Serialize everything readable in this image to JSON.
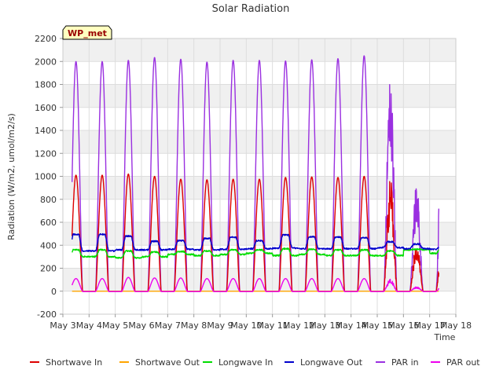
{
  "chart_data": {
    "type": "line",
    "title": "Solar Radiation",
    "xlabel": "Time",
    "ylabel": "Radiation (W/m2, umol/m2/s)",
    "ylim": [
      -200,
      2200
    ],
    "xlim": [
      3,
      18
    ],
    "yticks": [
      -200,
      0,
      200,
      400,
      600,
      800,
      1000,
      1200,
      1400,
      1600,
      1800,
      2000,
      2200
    ],
    "xticks": [
      3,
      4,
      5,
      6,
      7,
      8,
      9,
      10,
      11,
      12,
      13,
      14,
      15,
      16,
      17,
      18
    ],
    "xtick_labels": [
      "May 3",
      "May 4",
      "May 5",
      "May 6",
      "May 7",
      "May 8",
      "May 9",
      "May 10",
      "May 11",
      "May 12",
      "May 13",
      "May 14",
      "May 15",
      "May 16",
      "May 17",
      "May 18"
    ],
    "grid": true,
    "legend_position": "bottom",
    "annotation": "WP_met",
    "x_data_start": 3.35,
    "x_data_end": 17.35,
    "series": [
      {
        "name": "Shortwave In",
        "color": "#dd0000",
        "daily_peak": [
          1010,
          1020,
          1000,
          975,
          970,
          975,
          975,
          990,
          995,
          990,
          1000,
          980,
          420,
          500
        ],
        "baseline": 0
      },
      {
        "name": "Shortwave Out",
        "color": "#ffa500",
        "daily_peak": [
          0,
          0,
          0,
          0,
          0,
          0,
          0,
          0,
          0,
          0,
          0,
          0,
          0,
          0
        ],
        "baseline": 0
      },
      {
        "name": "Longwave In",
        "color": "#00dd00",
        "daily_day": [
          360,
          350,
          340,
          345,
          350,
          360,
          360,
          370,
          365,
          360,
          360,
          350,
          365,
          370
        ],
        "daily_night": [
          300,
          290,
          300,
          320,
          310,
          320,
          330,
          310,
          320,
          310,
          310,
          310,
          360,
          330
        ]
      },
      {
        "name": "Longwave Out",
        "color": "#0000cc",
        "daily_day": [
          495,
          480,
          435,
          440,
          460,
          470,
          440,
          490,
          475,
          470,
          465,
          430,
          410,
          390
        ],
        "daily_night": [
          350,
          360,
          360,
          365,
          360,
          365,
          370,
          375,
          370,
          370,
          370,
          380,
          370,
          365
        ]
      },
      {
        "name": "PAR in",
        "color": "#9a30e0",
        "daily_peak": [
          2000,
          2010,
          2035,
          2020,
          1995,
          2010,
          2010,
          2005,
          2015,
          2025,
          2050,
          1980,
          930,
          1590
        ],
        "baseline": 0
      },
      {
        "name": "PAR out",
        "color": "#ee00ee",
        "daily_peak": [
          110,
          120,
          115,
          115,
          110,
          110,
          110,
          110,
          110,
          110,
          110,
          105,
          40,
          60
        ],
        "baseline": 0
      }
    ]
  }
}
